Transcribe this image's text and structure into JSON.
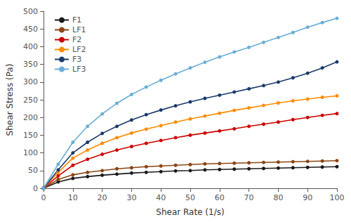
{
  "chart_data": {
    "type": "line",
    "xlabel": "Shear Rate (1/s)",
    "ylabel": "Shear Stress (Pa)",
    "x": [
      0,
      5,
      10,
      15,
      20,
      25,
      30,
      35,
      40,
      45,
      50,
      55,
      60,
      65,
      70,
      75,
      80,
      85,
      90,
      95,
      100
    ],
    "series": [
      {
        "name": "F1",
        "color": "#1a1a1a",
        "values": [
          0,
          18,
          28,
          33,
          37,
          40,
          43,
          45,
          47,
          49,
          50,
          52,
          53,
          54,
          55,
          56,
          57,
          58,
          59,
          60,
          61
        ]
      },
      {
        "name": "LF1",
        "color": "#8B4513",
        "values": [
          0,
          25,
          38,
          45,
          50,
          55,
          58,
          61,
          63,
          65,
          67,
          69,
          70,
          71,
          72,
          73,
          74,
          75,
          76,
          77,
          78
        ]
      },
      {
        "name": "F2",
        "color": "#cc0000",
        "values": [
          0,
          35,
          65,
          82,
          96,
          108,
          118,
          127,
          135,
          143,
          150,
          156,
          162,
          168,
          175,
          181,
          187,
          194,
          200,
          206,
          211
        ]
      },
      {
        "name": "LF2",
        "color": "#FF8C00",
        "values": [
          0,
          45,
          85,
          108,
          127,
          143,
          156,
          167,
          177,
          187,
          196,
          204,
          212,
          220,
          227,
          234,
          241,
          247,
          252,
          257,
          261
        ]
      },
      {
        "name": "F3",
        "color": "#1a3a6b",
        "values": [
          0,
          52,
          100,
          130,
          155,
          175,
          193,
          208,
          221,
          233,
          244,
          254,
          263,
          272,
          281,
          290,
          300,
          312,
          325,
          340,
          357
        ]
      },
      {
        "name": "LF3",
        "color": "#6aaed6",
        "values": [
          0,
          68,
          130,
          175,
          210,
          240,
          265,
          286,
          305,
          323,
          340,
          356,
          371,
          385,
          398,
          412,
          426,
          440,
          455,
          468,
          480
        ]
      }
    ],
    "xlim": [
      0,
      100
    ],
    "ylim": [
      0,
      500
    ],
    "xticks": [
      0,
      10,
      20,
      30,
      40,
      50,
      60,
      70,
      80,
      90,
      100
    ],
    "yticks": [
      0,
      50,
      100,
      150,
      200,
      250,
      300,
      350,
      400,
      450,
      500
    ],
    "marker": "circle",
    "legend": "upper left",
    "grid": false
  }
}
